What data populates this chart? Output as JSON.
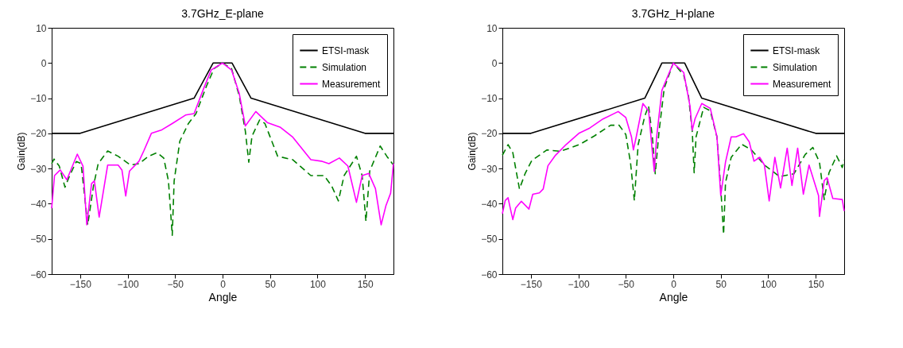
{
  "chart_data": [
    {
      "type": "line",
      "title": "3.7GHz_E-plane",
      "xlabel": "Angle",
      "ylabel": "Gain(dB)",
      "xlim": [
        -180,
        180
      ],
      "xticks": [
        -150,
        -100,
        -50,
        0,
        50,
        100,
        150
      ],
      "ylim": [
        -60,
        10
      ],
      "yticks": [
        -60,
        -50,
        -40,
        -30,
        -20,
        -10,
        0,
        10
      ],
      "grid": false,
      "legend": "top right",
      "marker": "none",
      "series": [
        {
          "name": "ETSI-mask",
          "color": "#000000",
          "line_style": "solid",
          "x": [
            -180,
            -150,
            -30,
            -10,
            10,
            30,
            150,
            180
          ],
          "values": [
            -20,
            -20,
            -10,
            0,
            0,
            -10,
            -20,
            -20
          ]
        },
        {
          "name": "Simulation",
          "color": "#008000",
          "line_style": "dashed",
          "x": [
            -180,
            -177.5,
            -172,
            -166,
            -161,
            -154,
            -149,
            -142,
            -136,
            -131,
            -121,
            -110,
            -97,
            -88,
            -78,
            -69,
            -62,
            -57,
            -53,
            -51,
            -45,
            -36,
            -28,
            -17,
            -9,
            0,
            9.5,
            17.6,
            24,
            27.6,
            31,
            39,
            44.6,
            58,
            74,
            93,
            107,
            115,
            122,
            128,
            141,
            147,
            151,
            155,
            166,
            173,
            180
          ],
          "values": [
            -28.6,
            -27.3,
            -29.3,
            -35.3,
            -32,
            -28,
            -28.6,
            -46,
            -35,
            -28.6,
            -25,
            -26.5,
            -29,
            -28.6,
            -26.5,
            -25.5,
            -27,
            -33.5,
            -49,
            -33.5,
            -22.2,
            -17.2,
            -14.4,
            -6.6,
            -1.6,
            0,
            -1.6,
            -9.4,
            -19.4,
            -28.2,
            -20.8,
            -16.2,
            -17.2,
            -26.5,
            -27.5,
            -32,
            -32,
            -35,
            -39.2,
            -32,
            -26.5,
            -32,
            -45,
            -30.7,
            -23.6,
            -26.5,
            -29
          ]
        },
        {
          "name": "Measurement",
          "color": "#ff00ff",
          "line_style": "solid",
          "x": [
            -180,
            -177,
            -171,
            -164,
            -153,
            -147,
            -143,
            -138,
            -135,
            -130,
            -121,
            -110,
            -106,
            -102,
            -98,
            -88,
            -83,
            -75,
            -64,
            -53,
            -39,
            -30,
            -20,
            -12,
            0,
            9.5,
            17.6,
            24,
            35,
            47,
            61,
            74,
            93,
            104,
            112,
            123,
            132,
            141,
            147,
            154,
            161,
            167,
            172,
            177,
            180
          ],
          "values": [
            -41.3,
            -32,
            -30.4,
            -33.2,
            -25.9,
            -29.3,
            -46,
            -34.3,
            -33.5,
            -43.8,
            -29,
            -29,
            -30.4,
            -37.8,
            -30.7,
            -27.9,
            -25,
            -20,
            -19,
            -17.2,
            -14.8,
            -14.4,
            -7.3,
            -2,
            0,
            -2,
            -8.7,
            -17.9,
            -13.8,
            -16.9,
            -18.3,
            -21.1,
            -27.5,
            -27.9,
            -28.6,
            -27,
            -29.3,
            -39.6,
            -32,
            -31.4,
            -35.7,
            -46,
            -40.6,
            -37,
            -28.6
          ]
        }
      ]
    },
    {
      "type": "line",
      "title": "3.7GHz_H-plane",
      "xlabel": "Angle",
      "ylabel": "Gain(dB)",
      "xlim": [
        -180,
        180
      ],
      "xticks": [
        -150,
        -100,
        -50,
        0,
        50,
        100,
        150
      ],
      "ylim": [
        -60,
        10
      ],
      "yticks": [
        -60,
        -50,
        -40,
        -30,
        -20,
        -10,
        0,
        10
      ],
      "grid": false,
      "legend": "top right",
      "marker": "none",
      "series": [
        {
          "name": "ETSI-mask",
          "color": "#000000",
          "line_style": "solid",
          "x": [
            -180,
            -150,
            -30,
            -12,
            12,
            30,
            150,
            180
          ],
          "values": [
            -20,
            -20,
            -10,
            0,
            0,
            -10,
            -20,
            -20
          ]
        },
        {
          "name": "Simulation",
          "color": "#008000",
          "line_style": "dashed",
          "x": [
            -180,
            -174,
            -169,
            -162,
            -156,
            -149,
            -133,
            -119,
            -99,
            -83,
            -66,
            -57,
            -50,
            -45,
            -41,
            -37,
            -30,
            -26,
            -22,
            -19,
            -15,
            -9.5,
            0,
            11,
            16,
            20,
            22,
            24,
            32,
            39,
            46,
            50,
            53,
            55,
            61,
            72,
            82,
            96,
            112,
            127,
            139,
            147,
            154,
            159,
            164,
            172,
            178,
            180
          ],
          "values": [
            -26.2,
            -23.2,
            -25.5,
            -35.8,
            -31.4,
            -27.7,
            -24.7,
            -25.1,
            -23.2,
            -20.7,
            -17.7,
            -17.7,
            -20.3,
            -28.4,
            -39.1,
            -23.2,
            -15.1,
            -12.2,
            -21,
            -31.5,
            -19.5,
            -7.1,
            0,
            -3.4,
            -9.3,
            -19.5,
            -31.2,
            -21,
            -12.6,
            -13.6,
            -21,
            -35.5,
            -48.7,
            -34,
            -26.8,
            -23.1,
            -24.6,
            -29,
            -32.3,
            -31.5,
            -26,
            -24,
            -28.2,
            -38.8,
            -31.2,
            -26.4,
            -29.7,
            -27.5
          ]
        },
        {
          "name": "Measurement",
          "color": "#ff00ff",
          "line_style": "solid",
          "x": [
            -180,
            -177,
            -174,
            -172,
            -169,
            -166,
            -160,
            -152,
            -148,
            -141,
            -137,
            -132,
            -124,
            -113,
            -99,
            -88,
            -74,
            -58,
            -50,
            -44,
            -42,
            -39,
            -32,
            -26,
            -22,
            -20,
            -17.5,
            -12,
            0,
            11,
            17.6,
            20,
            23,
            30,
            39,
            46,
            50,
            55,
            61,
            66,
            74,
            80,
            85,
            91,
            96,
            101,
            107,
            113,
            120,
            125,
            131,
            137,
            143,
            153,
            154,
            159,
            162,
            168,
            178,
            180
          ],
          "values": [
            -42.8,
            -39.1,
            -38.3,
            -40.9,
            -44.5,
            -41.2,
            -39.3,
            -41.5,
            -37.3,
            -36.9,
            -35.8,
            -29.2,
            -26.2,
            -23.2,
            -19.9,
            -18.5,
            -15.9,
            -13.8,
            -15.5,
            -21,
            -24.7,
            -21,
            -11.5,
            -13.6,
            -25.3,
            -30.8,
            -21,
            -7.8,
            0,
            -2.7,
            -12.2,
            -19.1,
            -15.8,
            -11.5,
            -12.9,
            -21,
            -37.7,
            -28.2,
            -21,
            -21,
            -20.1,
            -22.4,
            -27.9,
            -26.8,
            -29,
            -39.2,
            -26.8,
            -35.5,
            -24.2,
            -34.8,
            -24.2,
            -37.3,
            -29,
            -37.7,
            -43.6,
            -33.4,
            -32.6,
            -38.5,
            -38.8,
            -42.1
          ]
        }
      ]
    }
  ]
}
